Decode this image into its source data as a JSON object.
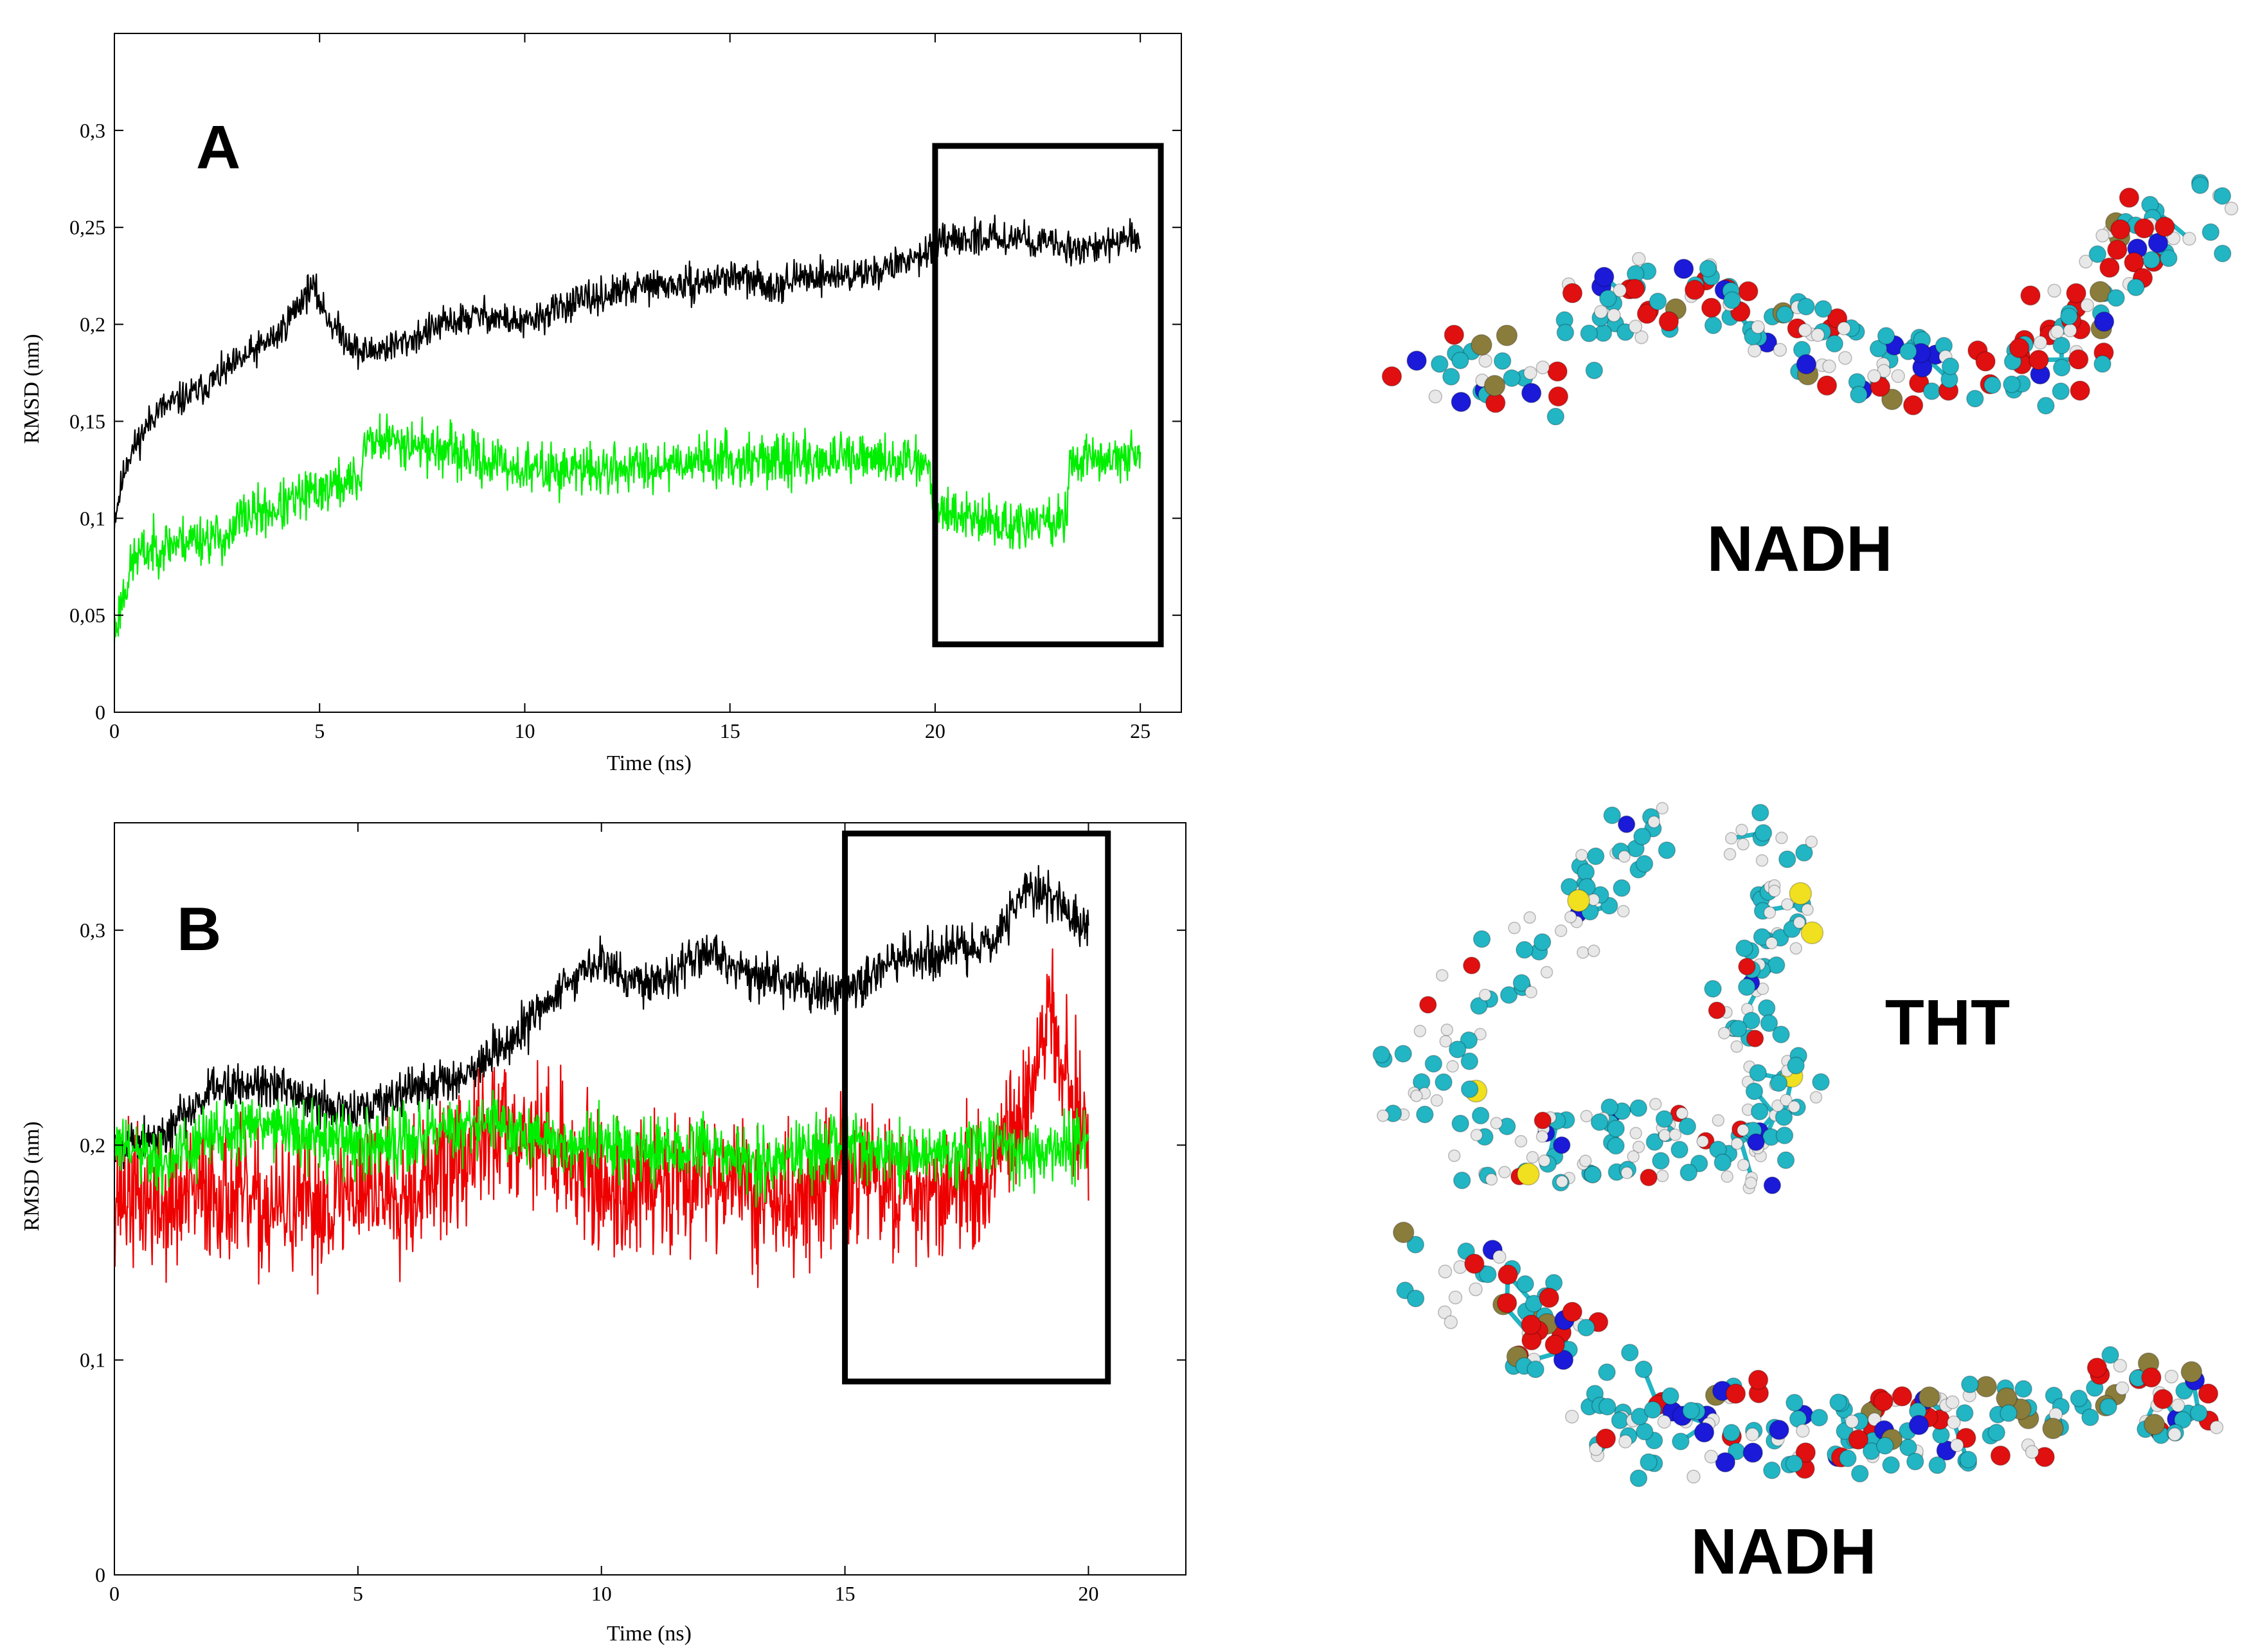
{
  "molecule_labels": {
    "top_nadh": "NADH",
    "tht": "THT",
    "bottom_nadh": "NADH"
  },
  "colors": {
    "black_series": "#000000",
    "green_series": "#00ee00",
    "red_series": "#ee0000",
    "carbon": "#22b5c4",
    "hydrogen": "#e8e8e8",
    "oxygen": "#e01010",
    "nitrogen": "#1a1ad8",
    "phosphorus": "#8a7d3c",
    "sulfur": "#f0e020"
  },
  "chart_data": [
    {
      "type": "line",
      "panel_label": "A",
      "xlabel": "Time (ns)",
      "ylabel": "RMSD (nm)",
      "xlim": [
        0,
        26
      ],
      "ylim": [
        0,
        0.35
      ],
      "xticks": [
        0,
        5,
        10,
        15,
        20,
        25
      ],
      "yticks": [
        0,
        0.05,
        0.1,
        0.15,
        0.2,
        0.25,
        0.3
      ],
      "xtick_labels": [
        "0",
        "5",
        "10",
        "15",
        "20",
        "25"
      ],
      "ytick_labels": [
        "0",
        "0,05",
        "0,1",
        "0,15",
        "0,2",
        "0,25",
        "0,3"
      ],
      "highlight_box": {
        "x": [
          20,
          25.5
        ],
        "y": [
          0.035,
          0.292
        ]
      },
      "series": [
        {
          "color": "black",
          "noise": 0.008,
          "seed": 11,
          "x": [
            0,
            0.3,
            1,
            2,
            3,
            4,
            4.8,
            5.3,
            6,
            7,
            8,
            9,
            10,
            11,
            12,
            13,
            14,
            15,
            16,
            17,
            18,
            19,
            20,
            21,
            22,
            23,
            24,
            25
          ],
          "y": [
            0.1,
            0.13,
            0.155,
            0.165,
            0.18,
            0.195,
            0.22,
            0.2,
            0.185,
            0.19,
            0.2,
            0.205,
            0.2,
            0.21,
            0.215,
            0.22,
            0.22,
            0.225,
            0.22,
            0.225,
            0.225,
            0.23,
            0.24,
            0.245,
            0.245,
            0.24,
            0.24,
            0.245
          ]
        },
        {
          "color": "green",
          "noise": 0.012,
          "seed": 23,
          "x": [
            0,
            0.2,
            0.5,
            1,
            2,
            2.9,
            3.0,
            4,
            5,
            6.0,
            6.1,
            7,
            8,
            9,
            10,
            12,
            14,
            16,
            18,
            19.8,
            20.0,
            21,
            22,
            23.2,
            23.3,
            24,
            25
          ],
          "y": [
            0.04,
            0.06,
            0.08,
            0.085,
            0.09,
            0.09,
            0.1,
            0.105,
            0.115,
            0.12,
            0.14,
            0.14,
            0.135,
            0.13,
            0.125,
            0.125,
            0.13,
            0.13,
            0.13,
            0.13,
            0.105,
            0.1,
            0.095,
            0.1,
            0.13,
            0.13,
            0.135
          ]
        }
      ]
    },
    {
      "type": "line",
      "panel_label": "B",
      "xlabel": "Time (ns)",
      "ylabel": "RMSD (nm)",
      "xlim": [
        0,
        22
      ],
      "ylim": [
        0,
        0.35
      ],
      "xticks": [
        0,
        5,
        10,
        15,
        20
      ],
      "yticks": [
        0,
        0.1,
        0.2,
        0.3
      ],
      "xtick_labels": [
        "0",
        "5",
        "10",
        "15",
        "20"
      ],
      "ytick_labels": [
        "0",
        "0,1",
        "0,2",
        "0,3"
      ],
      "highlight_box": {
        "x": [
          15,
          20.4
        ],
        "y": [
          0.09,
          0.345
        ]
      },
      "series": [
        {
          "color": "red",
          "noise": 0.03,
          "seed": 37,
          "x": [
            0,
            1,
            2,
            3,
            4,
            5,
            6,
            7,
            8,
            9,
            10,
            11,
            12,
            13,
            14,
            15,
            16,
            17,
            18,
            18.7,
            19.2,
            20
          ],
          "y": [
            0.18,
            0.17,
            0.18,
            0.17,
            0.17,
            0.18,
            0.18,
            0.19,
            0.21,
            0.2,
            0.18,
            0.18,
            0.19,
            0.18,
            0.17,
            0.19,
            0.18,
            0.18,
            0.18,
            0.22,
            0.26,
            0.2
          ]
        },
        {
          "color": "black",
          "noise": 0.01,
          "seed": 5,
          "x": [
            0,
            1,
            1.5,
            2,
            3,
            4,
            5,
            6,
            7,
            8,
            9,
            10,
            11,
            12,
            13,
            14,
            15,
            16,
            17,
            18,
            18.8,
            19.5,
            20
          ],
          "y": [
            0.2,
            0.205,
            0.215,
            0.225,
            0.23,
            0.22,
            0.215,
            0.225,
            0.23,
            0.245,
            0.27,
            0.285,
            0.275,
            0.29,
            0.28,
            0.275,
            0.27,
            0.285,
            0.29,
            0.295,
            0.32,
            0.31,
            0.3
          ]
        },
        {
          "color": "green",
          "noise": 0.014,
          "seed": 61,
          "x": [
            0,
            1,
            2,
            3,
            4,
            5,
            6,
            7,
            8,
            9,
            10,
            11,
            12,
            13,
            14,
            15,
            16,
            17,
            18,
            19,
            20
          ],
          "y": [
            0.2,
            0.19,
            0.205,
            0.21,
            0.205,
            0.2,
            0.2,
            0.21,
            0.21,
            0.2,
            0.2,
            0.195,
            0.2,
            0.19,
            0.195,
            0.2,
            0.195,
            0.195,
            0.2,
            0.195,
            0.2
          ]
        }
      ]
    }
  ]
}
